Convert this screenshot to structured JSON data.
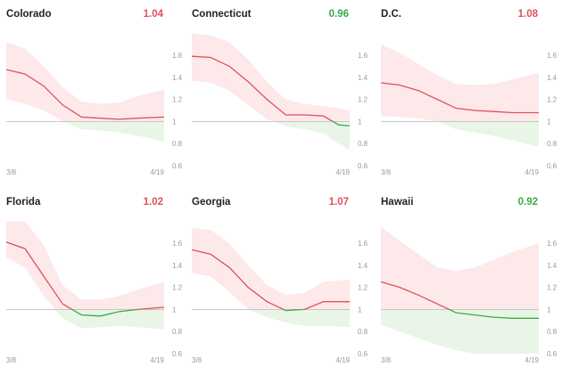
{
  "colors": {
    "above": "#e0505a",
    "below": "#3bab45",
    "band_above": "#fde9ea",
    "band_below": "#e9f5e6",
    "baseline": "#b9b9b9"
  },
  "chart_data": [
    {
      "type": "area",
      "title": "Colorado",
      "value_label": "1.04",
      "value_color": "#e0505a",
      "x": [
        "3/8",
        "3/13",
        "3/18",
        "3/23",
        "3/28",
        "4/2",
        "4/7",
        "4/12",
        "4/19"
      ],
      "x_tick_labels": [
        "3/8",
        "4/19"
      ],
      "ylim": [
        0.6,
        1.8
      ],
      "yticks": [
        0.6,
        0.8,
        1,
        1.2,
        1.4,
        1.6
      ],
      "baseline": 1,
      "series": [
        {
          "values": [
            1.47,
            1.43,
            1.32,
            1.15,
            1.04,
            1.03,
            1.02,
            1.03,
            1.04
          ]
        }
      ],
      "band_upper": [
        1.72,
        1.66,
        1.5,
        1.31,
        1.18,
        1.16,
        1.17,
        1.23,
        1.29
      ],
      "band_lower": [
        1.2,
        1.16,
        1.1,
        1.0,
        0.93,
        0.92,
        0.9,
        0.87,
        0.82
      ]
    },
    {
      "type": "area",
      "title": "Connecticut",
      "value_label": "0.96",
      "value_color": "#3bab45",
      "x": [
        "3/8",
        "3/13",
        "3/18",
        "3/23",
        "3/28",
        "4/2",
        "4/7",
        "4/12",
        "4/16",
        "4/19"
      ],
      "x_tick_labels": [
        "4/19"
      ],
      "ylim": [
        0.6,
        1.8
      ],
      "yticks": [
        0.6,
        0.8,
        1,
        1.2,
        1.4,
        1.6
      ],
      "baseline": 1,
      "series": [
        {
          "values": [
            1.59,
            1.58,
            1.5,
            1.36,
            1.2,
            1.06,
            1.06,
            1.05,
            0.97,
            0.96
          ]
        }
      ],
      "band_upper": [
        1.8,
        1.78,
        1.72,
        1.56,
        1.36,
        1.2,
        1.16,
        1.14,
        1.12,
        1.1
      ],
      "band_lower": [
        1.37,
        1.35,
        1.28,
        1.15,
        1.02,
        0.96,
        0.93,
        0.89,
        0.8,
        0.74
      ]
    },
    {
      "type": "area",
      "title": "D.C.",
      "value_label": "1.08",
      "value_color": "#e0505a",
      "x": [
        "3/8",
        "3/13",
        "3/18",
        "3/23",
        "3/28",
        "4/2",
        "4/7",
        "4/12",
        "4/19"
      ],
      "x_tick_labels": [
        "3/8",
        "4/19"
      ],
      "ylim": [
        0.6,
        1.8
      ],
      "yticks": [
        0.6,
        0.8,
        1,
        1.2,
        1.4,
        1.6
      ],
      "baseline": 1,
      "series": [
        {
          "values": [
            1.35,
            1.33,
            1.28,
            1.2,
            1.12,
            1.1,
            1.09,
            1.08,
            1.08
          ]
        }
      ],
      "band_upper": [
        1.7,
        1.62,
        1.52,
        1.42,
        1.34,
        1.33,
        1.34,
        1.38,
        1.44
      ],
      "band_lower": [
        1.05,
        1.04,
        1.03,
        1.0,
        0.93,
        0.9,
        0.87,
        0.83,
        0.77
      ]
    },
    {
      "type": "area",
      "title": "Florida",
      "value_label": "1.02",
      "value_color": "#e0505a",
      "x": [
        "3/8",
        "3/13",
        "3/18",
        "3/23",
        "3/28",
        "4/2",
        "4/7",
        "4/12",
        "4/19"
      ],
      "x_tick_labels": [
        "3/8",
        "4/19"
      ],
      "ylim": [
        0.6,
        1.8
      ],
      "yticks": [
        0.6,
        0.8,
        1,
        1.2,
        1.4,
        1.6
      ],
      "baseline": 1,
      "series": [
        {
          "values": [
            1.61,
            1.55,
            1.3,
            1.05,
            0.95,
            0.94,
            0.98,
            1.0,
            1.02
          ]
        }
      ],
      "band_upper": [
        1.8,
        1.8,
        1.58,
        1.22,
        1.09,
        1.09,
        1.12,
        1.18,
        1.25
      ],
      "band_lower": [
        1.47,
        1.38,
        1.12,
        0.92,
        0.83,
        0.84,
        0.85,
        0.84,
        0.82
      ]
    },
    {
      "type": "area",
      "title": "Georgia",
      "value_label": "1.07",
      "value_color": "#e0505a",
      "x": [
        "3/8",
        "3/13",
        "3/18",
        "3/23",
        "3/28",
        "4/2",
        "4/7",
        "4/12",
        "4/19"
      ],
      "x_tick_labels": [
        "3/8",
        "4/19"
      ],
      "ylim": [
        0.6,
        1.8
      ],
      "yticks": [
        0.6,
        0.8,
        1,
        1.2,
        1.4,
        1.6
      ],
      "baseline": 1,
      "series": [
        {
          "values": [
            1.54,
            1.5,
            1.38,
            1.2,
            1.07,
            0.99,
            1.0,
            1.07,
            1.07
          ]
        }
      ],
      "band_upper": [
        1.74,
        1.72,
        1.6,
        1.4,
        1.22,
        1.13,
        1.15,
        1.25,
        1.27
      ],
      "band_lower": [
        1.33,
        1.3,
        1.16,
        1.0,
        0.93,
        0.88,
        0.85,
        0.85,
        0.84
      ]
    },
    {
      "type": "area",
      "title": "Hawaii",
      "value_label": "0.92",
      "value_color": "#3bab45",
      "x": [
        "3/8",
        "3/13",
        "3/18",
        "3/23",
        "3/28",
        "4/2",
        "4/7",
        "4/12",
        "4/19"
      ],
      "x_tick_labels": [
        "3/8",
        "4/19"
      ],
      "ylim": [
        0.6,
        1.8
      ],
      "yticks": [
        0.6,
        0.8,
        1,
        1.2,
        1.4,
        1.6
      ],
      "baseline": 1,
      "series": [
        {
          "values": [
            1.25,
            1.2,
            1.13,
            1.05,
            0.97,
            0.95,
            0.93,
            0.92,
            0.92
          ]
        }
      ],
      "band_upper": [
        1.75,
        1.62,
        1.5,
        1.38,
        1.35,
        1.38,
        1.45,
        1.52,
        1.6
      ],
      "band_lower": [
        0.86,
        0.8,
        0.74,
        0.68,
        0.63,
        0.6,
        0.6,
        0.6,
        0.6
      ]
    }
  ]
}
